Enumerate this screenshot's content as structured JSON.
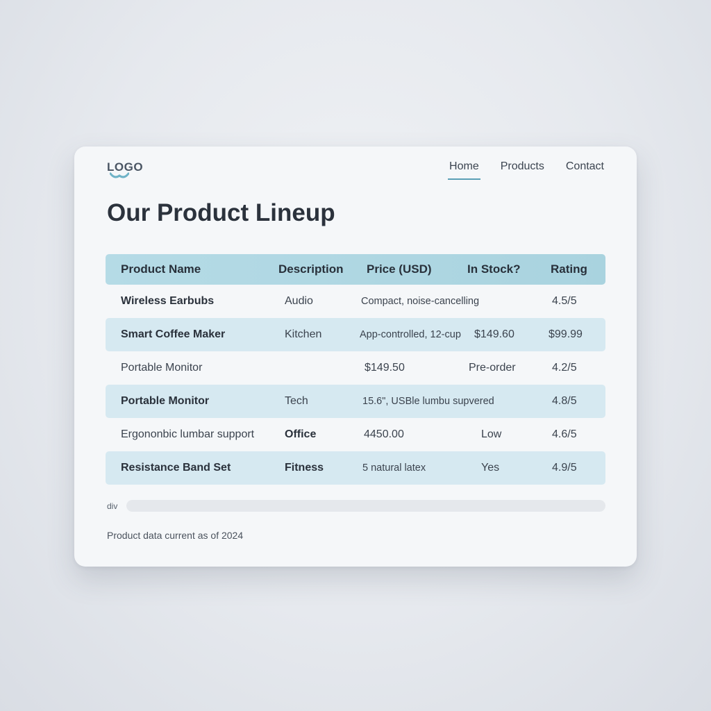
{
  "header": {
    "logo_text": "LOGO",
    "nav": [
      "Home",
      "Products",
      "Contact"
    ],
    "active_nav": "Home"
  },
  "page_title": "Our Product Lineup",
  "table": {
    "columns": [
      "Product Name",
      "Description",
      "Price (USD)",
      "In Stock?",
      "Rating"
    ],
    "rows": [
      [
        "Wireless Earbubs",
        "Audio",
        "Compact, noise-cancelling",
        "",
        "4.5/5"
      ],
      [
        "Smart Coffee Maker",
        "Kitchen",
        "App-controlled, 12-cup",
        "$149.60",
        "$99.99"
      ],
      [
        "Portable Monitor",
        "",
        "$149.50",
        "Pre-order",
        "4.2/5"
      ],
      [
        "Portable Monitor",
        "Tech",
        "15.6\", USBle lumbu supvered",
        "",
        "4.8/5"
      ],
      [
        "Ergononbic lumbar support",
        "Office",
        "4450.00",
        "Low",
        "4.6/5"
      ],
      [
        "Resistance Band Set",
        "Fitness",
        "5 natural latex",
        "Yes",
        "4.9/5"
      ]
    ]
  },
  "scrollbar": {
    "label": "div"
  },
  "footnote": "Product data current as of 2024",
  "colors": {
    "accent": "#5a9fb5",
    "header_row": "#b5dbe6",
    "shaded_row": "#d6e9f1",
    "card_background": "#f5f7f9"
  }
}
